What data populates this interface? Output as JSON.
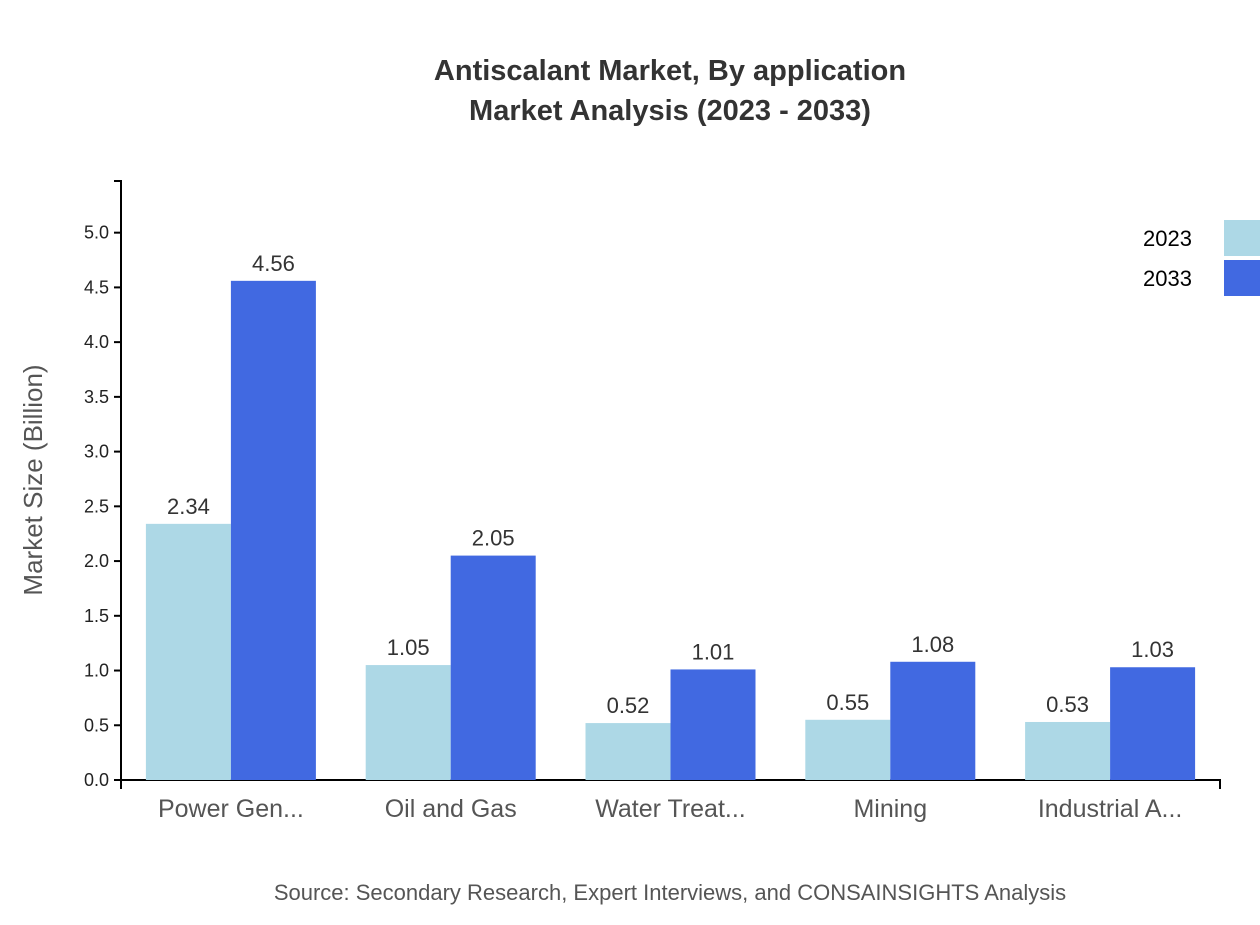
{
  "chart_data": {
    "type": "bar",
    "title": "Antiscalant Market, By application",
    "subtitle": "Market Analysis (2023 - 2033)",
    "xlabel": "",
    "ylabel": "Market Size (Billion)",
    "ylim": [
      0,
      5.472
    ],
    "yticks": [
      "0.0",
      "0.5",
      "1.0",
      "1.5",
      "2.0",
      "2.5",
      "3.0",
      "3.5",
      "4.0",
      "4.5",
      "5.0"
    ],
    "categories": [
      "Power Gen...",
      "Oil and Gas",
      "Water Treat...",
      "Mining",
      "Industrial A..."
    ],
    "series": [
      {
        "name": "2023",
        "color": "#add8e6",
        "values": [
          2.34,
          1.05,
          0.52,
          0.55,
          0.53
        ]
      },
      {
        "name": "2033",
        "color": "#4169e1",
        "values": [
          4.56,
          2.05,
          1.01,
          1.08,
          1.03
        ]
      }
    ],
    "grid": false,
    "legend": "top-right",
    "source": "Source: Secondary Research, Expert Interviews, and CONSAINSIGHTS Analysis"
  }
}
